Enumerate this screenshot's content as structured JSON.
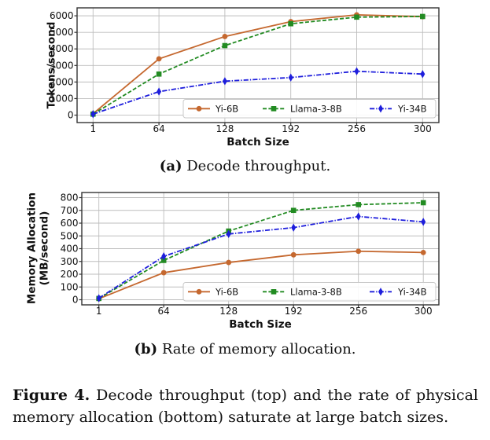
{
  "figure": {
    "subcaption_a": {
      "label": "(a)",
      "text": "Decode throughput."
    },
    "subcaption_b": {
      "label": "(b)",
      "text": "Rate of memory allocation."
    },
    "caption": {
      "label": "Figure 4.",
      "line1": "Decode throughput (top) and the rate of physical",
      "line2": "memory allocation (bottom) saturate at large batch sizes."
    }
  },
  "chart_data": [
    {
      "type": "line",
      "title": "",
      "xlabel": "Batch Size",
      "ylabel": "Tokens/second",
      "ylabel_lines": [
        "Tokens/second"
      ],
      "categories": [
        "1",
        "64",
        "128",
        "192",
        "256",
        "300"
      ],
      "yticks": [
        0,
        1000,
        2000,
        3000,
        4000,
        5000,
        6000
      ],
      "ylim": [
        -450,
        6480
      ],
      "grid": true,
      "legend_position": "lower-center-inside",
      "series": [
        {
          "name": "Yi-6B",
          "color": "#C5682F",
          "marker": "circle",
          "linestyle": "solid",
          "values": [
            85,
            3400,
            4750,
            5650,
            6060,
            5950
          ]
        },
        {
          "name": "Llama-3-8B",
          "color": "#228B22",
          "marker": "square",
          "linestyle": "dashed",
          "values": [
            60,
            2480,
            4200,
            5520,
            5920,
            5960
          ]
        },
        {
          "name": "Yi-34B",
          "color": "#1E1EDC",
          "marker": "thin-diamond",
          "linestyle": "dashdot",
          "values": [
            60,
            1420,
            2050,
            2270,
            2650,
            2480
          ]
        }
      ]
    },
    {
      "type": "line",
      "title": "",
      "xlabel": "Batch Size",
      "ylabel": "Memory Allocation (MB/second)",
      "ylabel_lines": [
        "Memory Allocation",
        "(MB/second)"
      ],
      "categories": [
        "1",
        "64",
        "128",
        "192",
        "256",
        "300"
      ],
      "yticks": [
        0,
        100,
        200,
        300,
        400,
        500,
        600,
        700,
        800
      ],
      "ylim": [
        -40,
        840
      ],
      "grid": true,
      "legend_position": "lower-center-inside",
      "series": [
        {
          "name": "Yi-6B",
          "color": "#C5682F",
          "marker": "circle",
          "linestyle": "solid",
          "values": [
            8,
            212,
            292,
            352,
            380,
            370
          ]
        },
        {
          "name": "Llama-3-8B",
          "color": "#228B22",
          "marker": "square",
          "linestyle": "dashed",
          "values": [
            10,
            308,
            538,
            700,
            745,
            760
          ]
        },
        {
          "name": "Yi-34B",
          "color": "#1E1EDC",
          "marker": "thin-diamond",
          "linestyle": "dashdot",
          "values": [
            12,
            340,
            515,
            565,
            652,
            610
          ]
        }
      ]
    }
  ]
}
